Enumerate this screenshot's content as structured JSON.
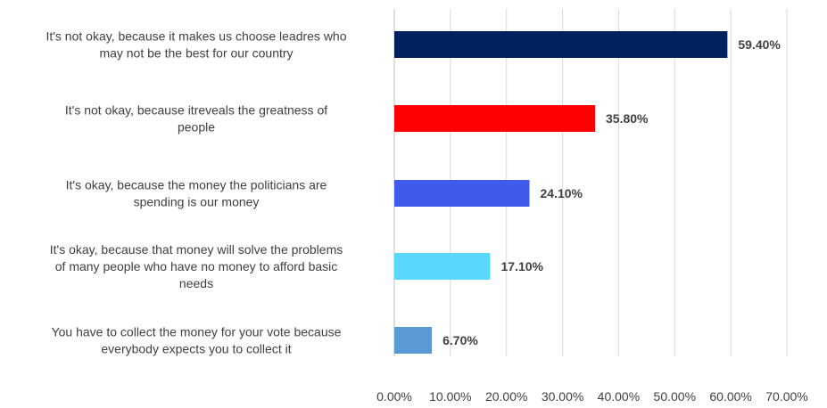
{
  "chart_data": {
    "type": "bar",
    "orientation": "horizontal",
    "title": "",
    "xlabel": "",
    "ylabel": "",
    "xlim": [
      0,
      70
    ],
    "x_ticks": [
      "0.00%",
      "10.00%",
      "20.00%",
      "30.00%",
      "40.00%",
      "50.00%",
      "60.00%",
      "70.00%"
    ],
    "grid": true,
    "legend": "none",
    "categories": [
      "It's not okay, because it makes us choose leadres who may not be the best for our country",
      "It's not okay, because itreveals the greatness of people",
      "It's okay, because the money the politicians are spending is our money",
      "It's okay, because that money will solve the problems of many people who have no money to afford basic needs",
      "You have to collect the money for your vote because everybody expects you to collect it"
    ],
    "category_lines": [
      [
        "It's not okay, because it makes us choose leadres who",
        "may not be the best for our country"
      ],
      [
        "It's not okay, because itreveals the greatness of",
        "people"
      ],
      [
        "It's okay, because the money the politicians are",
        "spending is our money"
      ],
      [
        "It's okay, because that money will solve the problems",
        "of many people who have no money to afford basic",
        "needs"
      ],
      [
        "You have to collect the money for your vote because",
        "everybody expects you to collect it"
      ]
    ],
    "values": [
      59.4,
      35.8,
      24.1,
      17.1,
      6.7
    ],
    "value_labels": [
      "59.40%",
      "35.80%",
      "24.10%",
      "17.10%",
      "6.70%"
    ],
    "colors": [
      "#002060",
      "#ff0000",
      "#3f5bec",
      "#5bd6fc",
      "#5b9bd5"
    ]
  }
}
